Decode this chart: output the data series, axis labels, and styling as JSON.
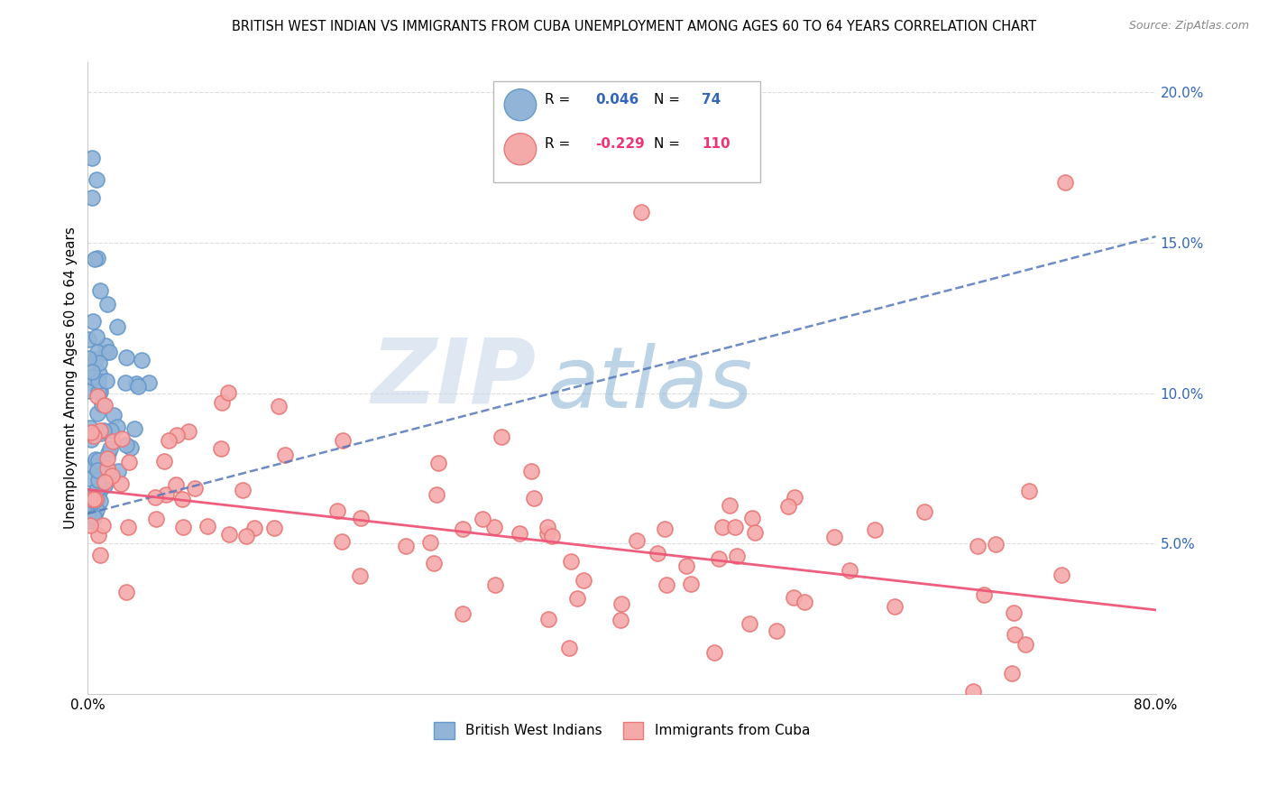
{
  "title": "BRITISH WEST INDIAN VS IMMIGRANTS FROM CUBA UNEMPLOYMENT AMONG AGES 60 TO 64 YEARS CORRELATION CHART",
  "source": "Source: ZipAtlas.com",
  "ylabel": "Unemployment Among Ages 60 to 64 years",
  "xlim": [
    0.0,
    0.8
  ],
  "ylim": [
    0.0,
    0.21
  ],
  "yticks_right": [
    0.05,
    0.1,
    0.15,
    0.2
  ],
  "yticks_right_labels": [
    "5.0%",
    "10.0%",
    "15.0%",
    "20.0%"
  ],
  "color_blue": "#92B4D7",
  "color_blue_edge": "#6699CC",
  "color_pink": "#F5AAAA",
  "color_pink_edge": "#E87878",
  "color_blue_line": "#5577BB",
  "color_pink_line": "#EE5577",
  "color_blue_text": "#3366BB",
  "color_pink_text": "#EE3377",
  "watermark_zip": "ZIP",
  "watermark_atlas": "atlas",
  "watermark_color_zip": "#BBCCDD",
  "watermark_color_atlas": "#99BBDD",
  "series1_label": "British West Indians",
  "series2_label": "Immigrants from Cuba",
  "bwi_trend_x0": 0.0,
  "bwi_trend_y0": 0.06,
  "bwi_trend_x1": 0.8,
  "bwi_trend_y1": 0.152,
  "cuba_trend_x0": 0.0,
  "cuba_trend_y0": 0.068,
  "cuba_trend_x1": 0.8,
  "cuba_trend_y1": 0.028
}
